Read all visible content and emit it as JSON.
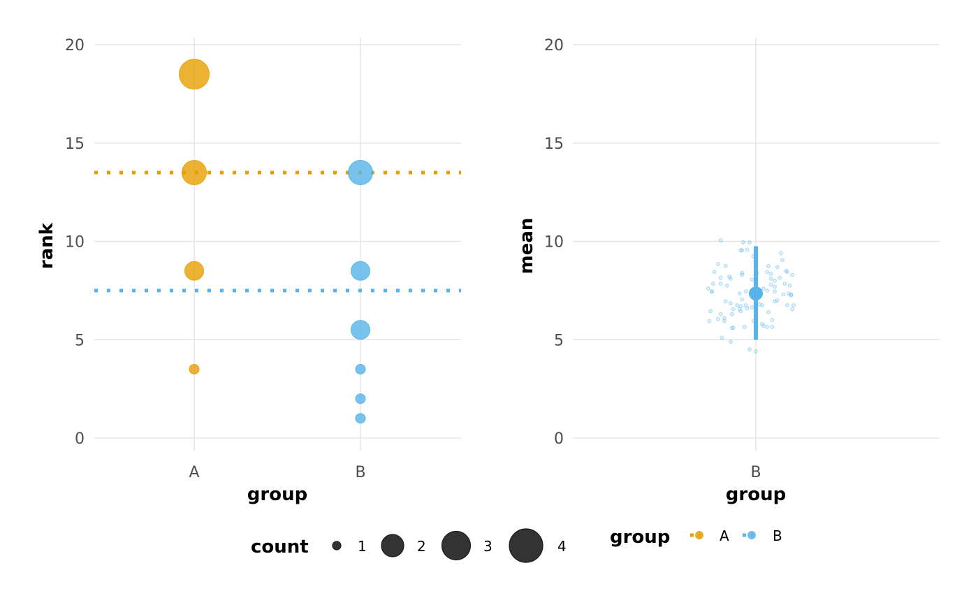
{
  "chart_data": [
    {
      "type": "scatter",
      "panel": "left",
      "xlabel": "group",
      "ylabel": "rank",
      "categories": [
        "A",
        "B"
      ],
      "ylim": [
        -1,
        20.5
      ],
      "yticks": [
        0,
        5,
        10,
        15,
        20
      ],
      "grid": true,
      "points": [
        {
          "group": "A",
          "rank": 18.5,
          "count": 4
        },
        {
          "group": "A",
          "rank": 13.5,
          "count": 3
        },
        {
          "group": "A",
          "rank": 8.5,
          "count": 2
        },
        {
          "group": "A",
          "rank": 3.5,
          "count": 1
        },
        {
          "group": "B",
          "rank": 13.5,
          "count": 3
        },
        {
          "group": "B",
          "rank": 8.5,
          "count": 2
        },
        {
          "group": "B",
          "rank": 5.5,
          "count": 2
        },
        {
          "group": "B",
          "rank": 3.5,
          "count": 1
        },
        {
          "group": "B",
          "rank": 2,
          "count": 1
        },
        {
          "group": "B",
          "rank": 1,
          "count": 1
        }
      ],
      "hlines": [
        {
          "group": "A",
          "value": 13.5,
          "style": "dotted"
        },
        {
          "group": "B",
          "value": 7.5,
          "style": "dotted"
        }
      ]
    },
    {
      "type": "scatter",
      "panel": "right",
      "xlabel": "group",
      "ylabel": "mean",
      "categories": [
        "B"
      ],
      "ylim": [
        -1,
        20.5
      ],
      "yticks": [
        0,
        5,
        10,
        15,
        20
      ],
      "grid": true,
      "summary": {
        "group": "B",
        "mean": 7.35,
        "lower": 5.0,
        "upper": 9.75
      },
      "jitter_points": [
        [
          -0.28,
          10.05
        ],
        [
          -0.1,
          9.95
        ],
        [
          -0.05,
          9.95
        ],
        [
          -0.12,
          9.55
        ],
        [
          -0.11,
          9.55
        ],
        [
          -0.07,
          9.57
        ],
        [
          -0.02,
          9.25
        ],
        [
          0.2,
          9.4
        ],
        [
          -0.3,
          8.85
        ],
        [
          -0.24,
          8.75
        ],
        [
          0.0,
          8.8
        ],
        [
          0.1,
          8.75
        ],
        [
          0.17,
          8.7
        ],
        [
          0.21,
          9.05
        ],
        [
          0.24,
          8.5
        ],
        [
          0.25,
          8.45
        ],
        [
          -0.33,
          8.45
        ],
        [
          -0.34,
          7.85
        ],
        [
          -0.28,
          8.15
        ],
        [
          -0.2,
          8.1
        ],
        [
          -0.21,
          8.2
        ],
        [
          -0.11,
          8.4
        ],
        [
          -0.11,
          8.3
        ],
        [
          -0.03,
          8.05
        ],
        [
          0.01,
          8.4
        ],
        [
          0.09,
          8.45
        ],
        [
          0.12,
          8.35
        ],
        [
          0.12,
          8.1
        ],
        [
          0.15,
          8.0
        ],
        [
          0.19,
          8.15
        ],
        [
          0.23,
          7.85
        ],
        [
          0.27,
          7.75
        ],
        [
          0.29,
          8.3
        ],
        [
          -0.38,
          7.6
        ],
        [
          -0.35,
          7.45
        ],
        [
          -0.35,
          7.45
        ],
        [
          -0.28,
          7.85
        ],
        [
          -0.23,
          7.75
        ],
        [
          -0.13,
          7.35
        ],
        [
          -0.11,
          7.05
        ],
        [
          -0.08,
          7.45
        ],
        [
          0.06,
          7.6
        ],
        [
          0.09,
          7.5
        ],
        [
          0.12,
          7.8
        ],
        [
          0.15,
          7.7
        ],
        [
          0.15,
          7.45
        ],
        [
          0.22,
          7.3
        ],
        [
          0.26,
          7.35
        ],
        [
          0.28,
          7.25
        ],
        [
          0.28,
          7.3
        ],
        [
          -0.24,
          6.95
        ],
        [
          -0.2,
          6.85
        ],
        [
          -0.18,
          6.55
        ],
        [
          -0.15,
          6.75
        ],
        [
          -0.12,
          6.7
        ],
        [
          -0.13,
          6.55
        ],
        [
          -0.08,
          6.75
        ],
        [
          -0.07,
          6.6
        ],
        [
          0.05,
          6.75
        ],
        [
          0.1,
          6.4
        ],
        [
          0.15,
          6.95
        ],
        [
          0.17,
          7.0
        ],
        [
          0.25,
          6.75
        ],
        [
          0.3,
          6.75
        ],
        [
          0.29,
          6.55
        ],
        [
          -0.36,
          6.45
        ],
        [
          -0.28,
          6.3
        ],
        [
          -0.19,
          6.3
        ],
        [
          -0.12,
          6.45
        ],
        [
          -0.25,
          6.1
        ],
        [
          -0.3,
          6.05
        ],
        [
          -0.37,
          5.95
        ],
        [
          -0.25,
          5.95
        ],
        [
          -0.19,
          5.6
        ],
        [
          -0.18,
          5.6
        ],
        [
          -0.09,
          5.65
        ],
        [
          -0.02,
          5.95
        ],
        [
          0.05,
          5.8
        ],
        [
          0.06,
          5.7
        ],
        [
          0.09,
          5.65
        ],
        [
          0.13,
          6.0
        ],
        [
          0.13,
          5.65
        ],
        [
          -0.27,
          5.1
        ],
        [
          -0.2,
          4.9
        ],
        [
          -0.05,
          4.5
        ],
        [
          0.0,
          4.4
        ],
        [
          0.01,
          7.2
        ],
        [
          -0.03,
          6.65
        ],
        [
          0.03,
          6.8
        ]
      ]
    }
  ],
  "legends": {
    "size": {
      "title": "count",
      "labels": [
        "1",
        "2",
        "3",
        "4"
      ],
      "values": [
        1,
        2,
        3,
        4
      ]
    },
    "color": {
      "title": "group",
      "labels": [
        "A",
        "B"
      ]
    }
  },
  "colors": {
    "A": "#E69F00",
    "B": "#56B4E9",
    "grid": "#e5e5e5",
    "legend_point": "#333333"
  }
}
